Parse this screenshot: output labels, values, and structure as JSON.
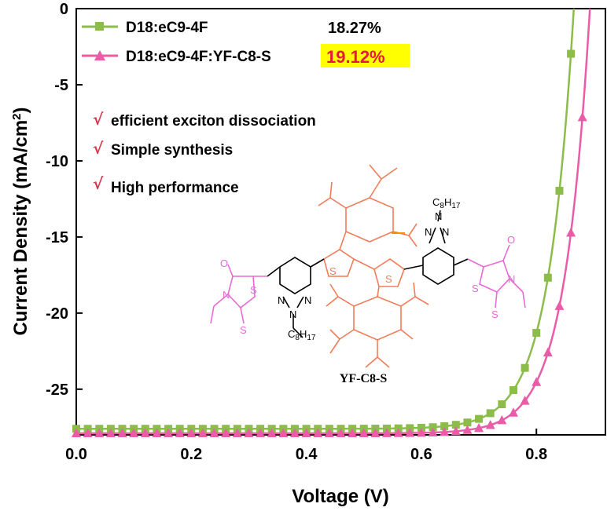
{
  "chart_data": {
    "type": "line",
    "xlabel": "Voltage (V)",
    "ylabel_main": "Current Density (mA/cm",
    "ylabel_sup": "2",
    "ylabel_end": ")",
    "xlim": [
      0.0,
      0.92
    ],
    "ylim": [
      -28.0,
      0.0
    ],
    "x_ticks": [
      "0.0",
      "0.2",
      "0.4",
      "0.6",
      "0.8"
    ],
    "y_ticks": [
      "0",
      "-5",
      "-10",
      "-15",
      "-20",
      "-25"
    ],
    "grid": false,
    "legend_position": "top-left",
    "series": [
      {
        "name": "D18:eC9-4F",
        "pce": "18.27%",
        "color": "#8cbc4a",
        "marker": "square",
        "jsc": -27.6,
        "voc": 0.865,
        "n_vt": 0.044,
        "x": [
          0.0,
          0.02,
          0.04,
          0.06,
          0.08,
          0.1,
          0.12,
          0.14,
          0.16,
          0.18,
          0.2,
          0.22,
          0.24,
          0.26,
          0.28,
          0.3,
          0.32,
          0.34,
          0.36,
          0.38,
          0.4,
          0.42,
          0.44,
          0.46,
          0.48,
          0.5,
          0.52,
          0.54,
          0.56,
          0.58,
          0.6,
          0.62,
          0.64,
          0.66,
          0.68,
          0.7,
          0.72,
          0.74,
          0.76,
          0.78,
          0.8,
          0.82,
          0.84,
          0.86
        ]
      },
      {
        "name": "D18:eC9-4F:YF-C8-S",
        "pce": "19.12%",
        "color": "#ea5ca8",
        "marker": "triangle",
        "jsc": -27.9,
        "voc": 0.893,
        "n_vt": 0.044,
        "x": [
          0.0,
          0.02,
          0.04,
          0.06,
          0.08,
          0.1,
          0.12,
          0.14,
          0.16,
          0.18,
          0.2,
          0.22,
          0.24,
          0.26,
          0.28,
          0.3,
          0.32,
          0.34,
          0.36,
          0.38,
          0.4,
          0.42,
          0.44,
          0.46,
          0.48,
          0.5,
          0.52,
          0.54,
          0.56,
          0.58,
          0.6,
          0.62,
          0.64,
          0.66,
          0.68,
          0.7,
          0.72,
          0.74,
          0.76,
          0.78,
          0.8,
          0.82,
          0.84,
          0.86,
          0.88
        ]
      }
    ],
    "notes": [
      "efficient exciton dissociation",
      "Simple synthesis",
      "High performance"
    ],
    "check_mark": "√",
    "molecule_label": "YF-C8-S",
    "molecule_atoms": {
      "N": "N",
      "O": "O",
      "S": "S",
      "C8H17_c": "C",
      "C8H17_8": "8",
      "C8H17_h": "H",
      "C8H17_17": "17"
    }
  }
}
